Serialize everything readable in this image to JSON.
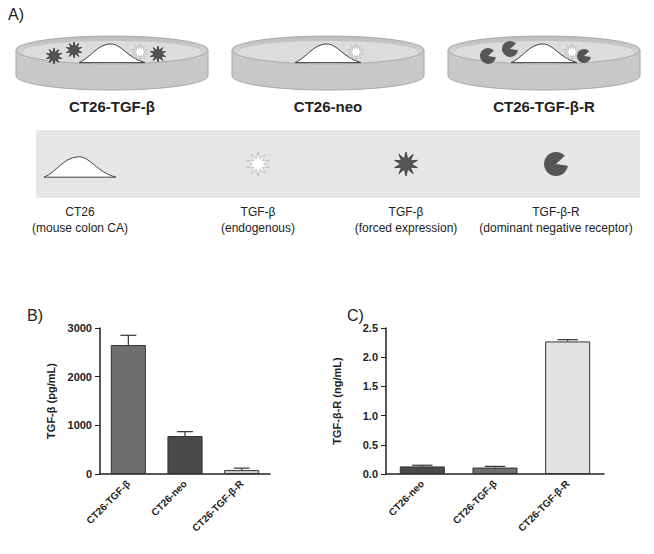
{
  "diagram": {
    "label": "A)",
    "dishes": [
      "CT26-TGF-β",
      "CT26-neo",
      "CT26-TGF-β-R"
    ],
    "legend": [
      {
        "name": "CT26",
        "note": "(mouse colon CA)"
      },
      {
        "name": "TGF-β",
        "note": "(endogenous)"
      },
      {
        "name": "TGF-β",
        "note": "(forced expression)"
      },
      {
        "name": "TGF-β-R",
        "note": "(dominant negative receptor)"
      }
    ]
  },
  "chart_data": [
    {
      "type": "bar",
      "title": "B)",
      "ylabel": "TGF-β (pg/mL)",
      "categories": [
        "CT26-TGF-β",
        "CT26-neo",
        "CT26-TGF-β-R"
      ],
      "values": [
        2650,
        780,
        80
      ],
      "errors": [
        200,
        90,
        40
      ],
      "colors": [
        "#6e6e6e",
        "#4a4a4a",
        "#d4d4d4"
      ],
      "ylim": [
        0,
        3000
      ],
      "yticks": [
        0,
        1000,
        2000,
        3000
      ]
    },
    {
      "type": "bar",
      "title": "C)",
      "ylabel": "TGF-β-R (ng/mL)",
      "categories": [
        "CT26-neo",
        "CT26-TGF-β",
        "CT26-TGF-β-R"
      ],
      "values": [
        0.13,
        0.11,
        2.27
      ],
      "errors": [
        0.02,
        0.02,
        0.03
      ],
      "colors": [
        "#4a4a4a",
        "#6e6e6e",
        "#e2e2e2"
      ],
      "ylim": [
        0,
        2.5
      ],
      "yticks": [
        {
          "value": 0,
          "label": "0.0"
        },
        0.5,
        {
          "value": 1,
          "label": "1.0"
        },
        1.5,
        {
          "value": 2,
          "label": "2.0"
        },
        2.5
      ]
    }
  ]
}
